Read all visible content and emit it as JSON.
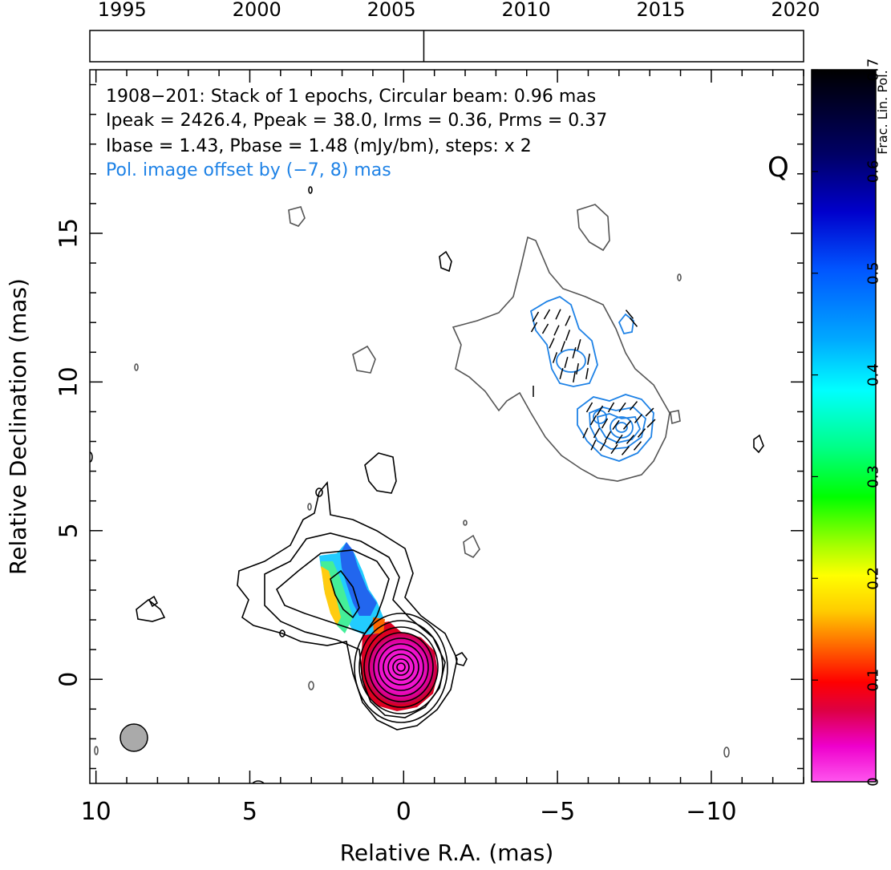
{
  "chart_data": {
    "type": "contour",
    "source": "1908-201",
    "stokes_label": "Q",
    "xlabel": "Relative R.A. (mas)",
    "ylabel": "Relative Declination (mas)",
    "xlim": [
      10.2,
      -13
    ],
    "ylim": [
      -3.5,
      20.5
    ],
    "x_ticks": [
      10,
      5,
      0,
      -5,
      -10
    ],
    "x_tick_labels": [
      "10",
      "5",
      "0",
      "−5",
      "−10"
    ],
    "y_ticks": [
      0,
      5,
      10,
      15
    ],
    "y_tick_labels": [
      "0",
      "5",
      "10",
      "15"
    ],
    "annotations": [
      "1908−201: Stack of 1 epochs, Circular beam: 0.96 mas",
      "Ipeak = 2426.4, Ppeak = 38.0, Irms = 0.36, Prms = 0.37",
      "Ibase = 1.43, Pbase = 1.48 (mJy/bm), steps: x 2",
      "Pol. image offset by (−7, 8) mas"
    ],
    "timeline": {
      "years": [
        "1995",
        "2000",
        "2005",
        "2010",
        "2015",
        "2020"
      ],
      "year_values": [
        1995,
        2000,
        2005,
        2010,
        2015,
        2020
      ],
      "range": [
        1993.8,
        2020.3
      ],
      "epochs": [
        2006.2
      ]
    },
    "colorbar": {
      "label": "Frac. Lin. Pol.",
      "range": [
        0,
        0.7
      ],
      "ticks": [
        "0",
        "0.1",
        "0.2",
        "0.3",
        "0.4",
        "0.5",
        "0.6",
        "0.7"
      ],
      "tick_values": [
        0,
        0.1,
        0.2,
        0.3,
        0.4,
        0.5,
        0.6,
        0.7
      ]
    },
    "beam": {
      "x": 8.8,
      "y": -2.0,
      "fwhm_mas": 0.96
    },
    "core": {
      "x": 0.0,
      "y": 0.3,
      "contour_levels": 10
    },
    "polarization_offset_mas": [
      -7,
      8
    ]
  },
  "colors": {
    "stokes_i_contours": "#000000",
    "secondary_contours": "#555555",
    "pol_contours": "#1e82e6",
    "annotation_blue": "#1e82e6",
    "beam_fill": "#aaaaaa"
  }
}
